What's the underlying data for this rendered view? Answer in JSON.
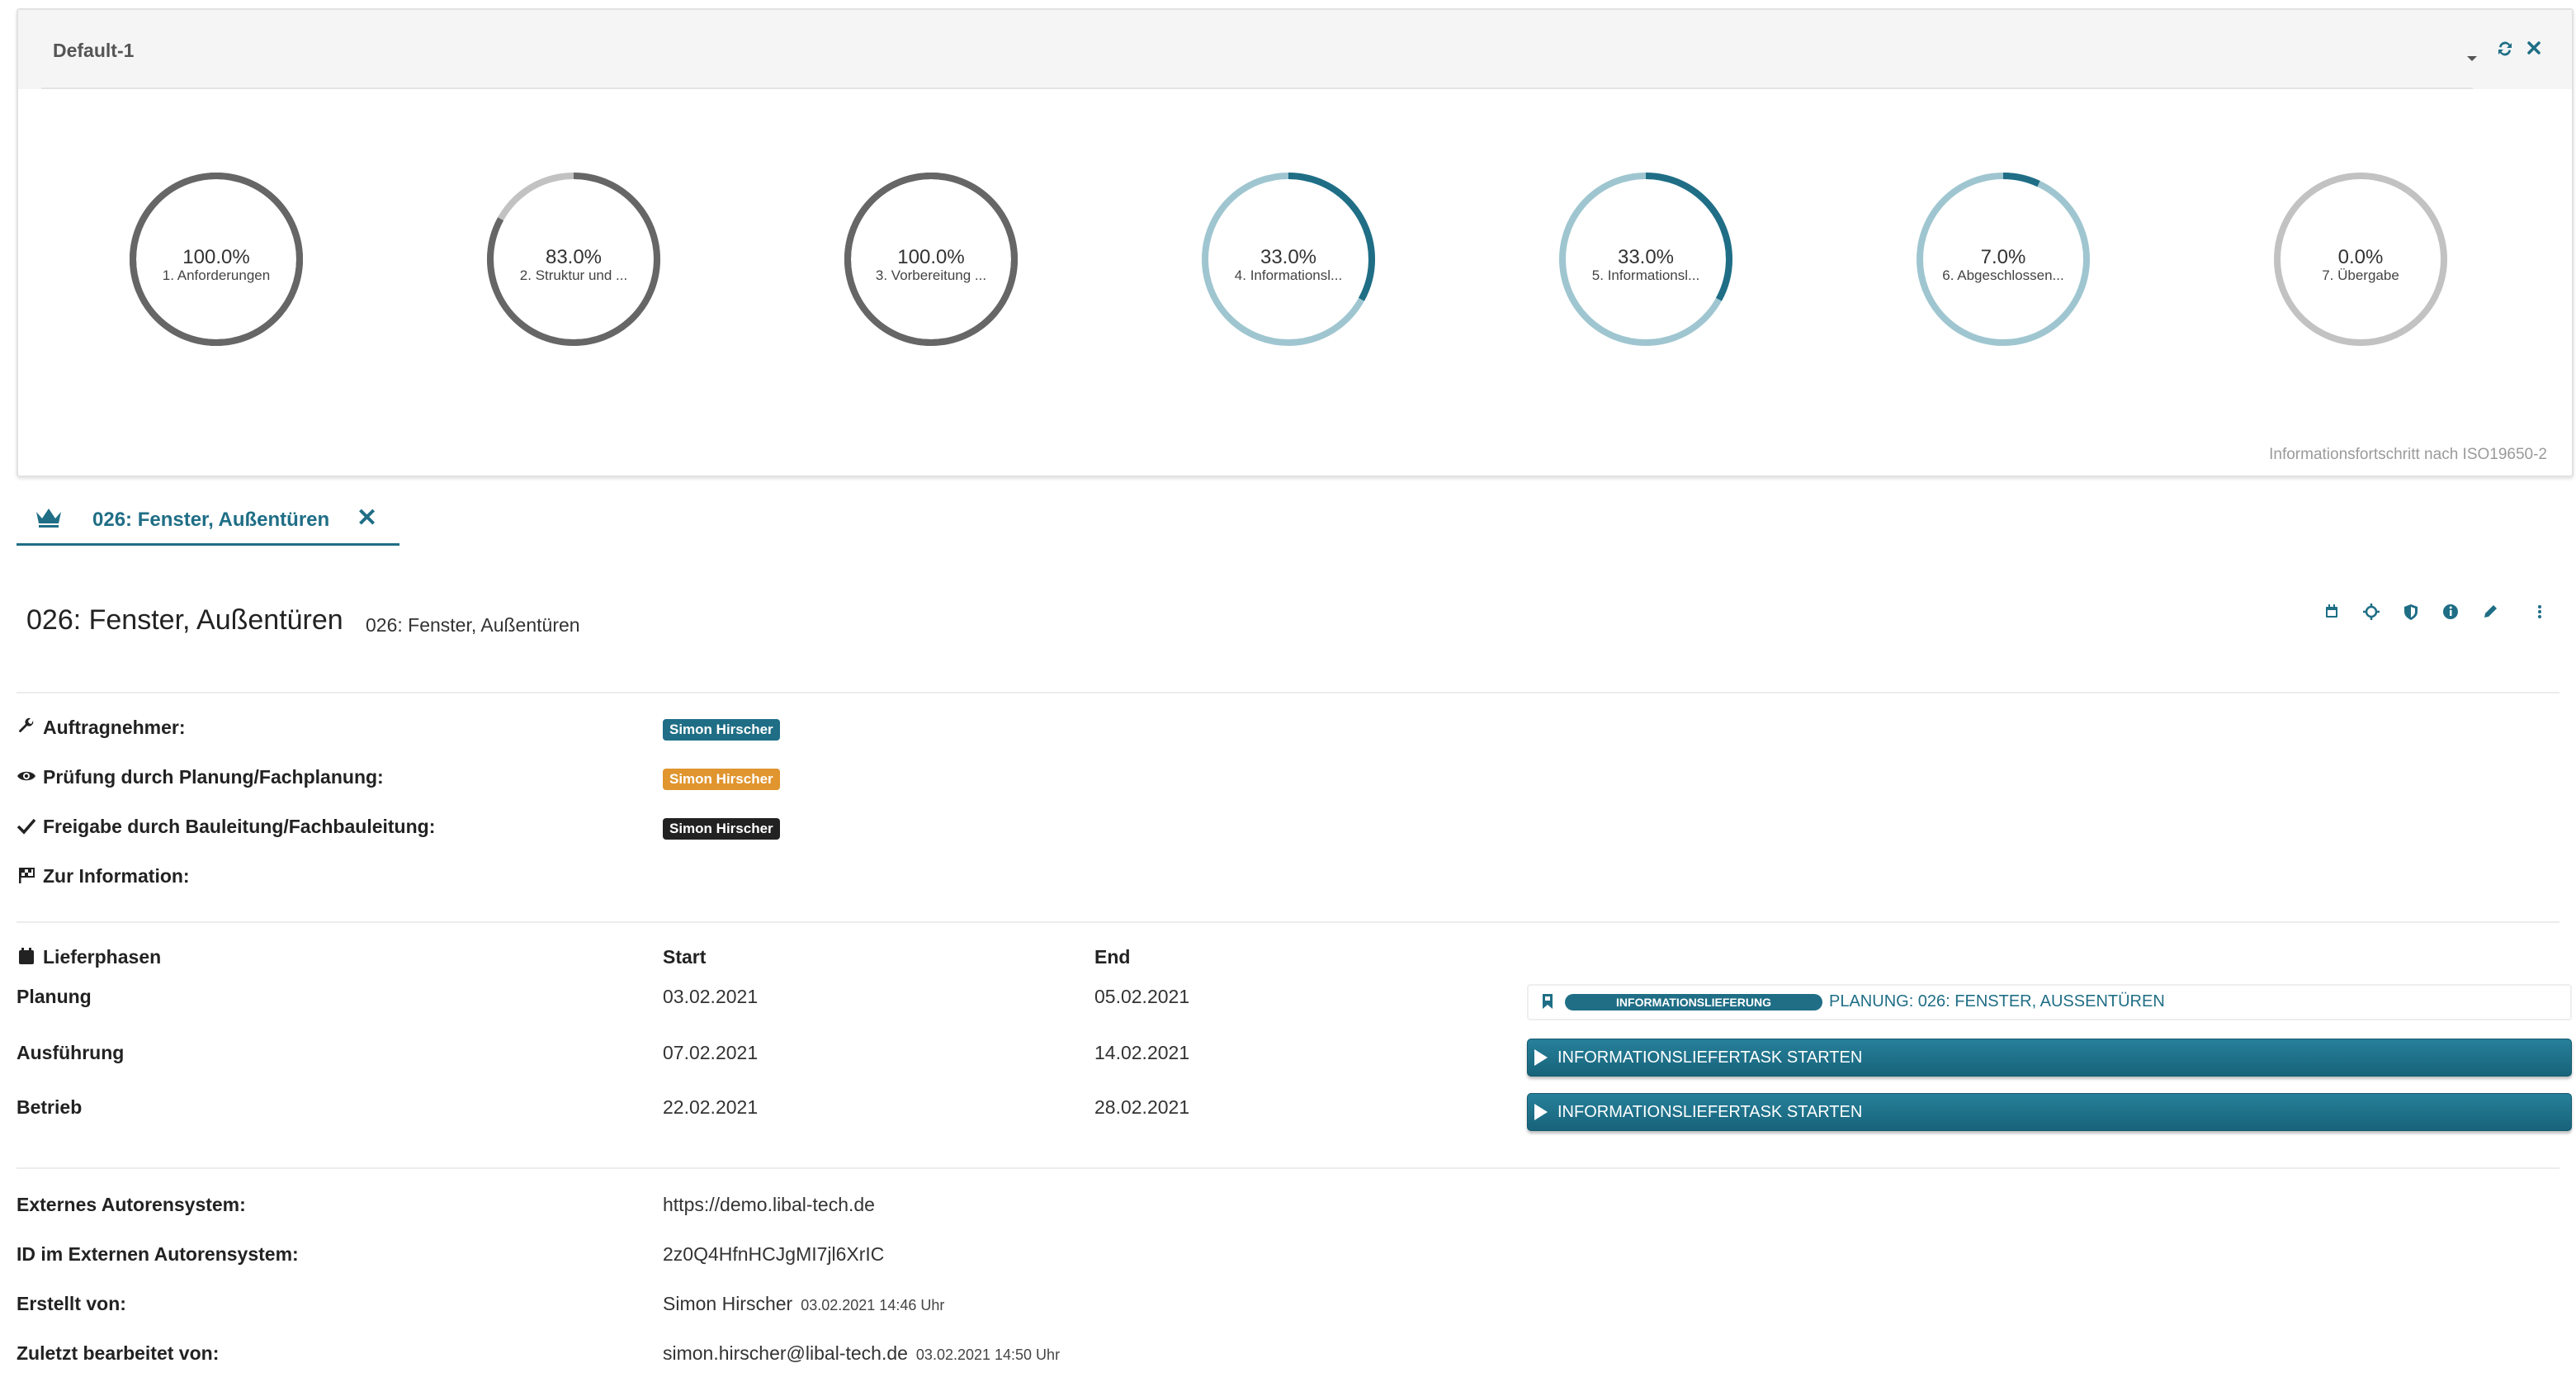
{
  "panel": {
    "title": "Default-1",
    "footer": "Informationsfortschritt nach ISO19650-2",
    "gauges": [
      {
        "pct": "100.0%",
        "label": "1. Anforderungen",
        "value": 100,
        "color": "#666666",
        "track": "#666666"
      },
      {
        "pct": "83.0%",
        "label": "2. Struktur und ...",
        "value": 83,
        "color": "#666666",
        "track": "#c2c2c2"
      },
      {
        "pct": "100.0%",
        "label": "3. Vorbereitung ...",
        "value": 100,
        "color": "#666666",
        "track": "#666666"
      },
      {
        "pct": "33.0%",
        "label": "4. Informationsl...",
        "value": 33,
        "color": "#1f6e86",
        "track": "#9fc6d0"
      },
      {
        "pct": "33.0%",
        "label": "5. Informationsl...",
        "value": 33,
        "color": "#1f6e86",
        "track": "#9fc6d0"
      },
      {
        "pct": "7.0%",
        "label": "6. Abgeschlossen...",
        "value": 7,
        "color": "#1f6e86",
        "track": "#9fc6d0"
      },
      {
        "pct": "0.0%",
        "label": "7. Übergabe",
        "value": 0,
        "color": "#c2c2c2",
        "track": "#c2c2c2"
      }
    ]
  },
  "tab": {
    "label": "026: Fenster, Außentüren"
  },
  "header": {
    "title": "026: Fenster, Außentüren",
    "subtitle": "026: Fenster, Außentüren"
  },
  "roles": {
    "contractor_label": "Auftragnehmer:",
    "contractor": "Simon Hirscher",
    "review_label": "Prüfung durch Planung/Fachplanung:",
    "reviewer": "Simon Hirscher",
    "approval_label": "Freigabe durch Bauleitung/Fachbauleitung:",
    "approver": "Simon Hirscher",
    "info_label": "Zur Information:"
  },
  "phases": {
    "col_phase": "Lieferphasen",
    "col_start": "Start",
    "col_end": "End",
    "rows": [
      {
        "name": "Planung",
        "start": "03.02.2021",
        "end": "05.02.2021"
      },
      {
        "name": "Ausführung",
        "start": "07.02.2021",
        "end": "14.02.2021"
      },
      {
        "name": "Betrieb",
        "start": "22.02.2021",
        "end": "28.02.2021"
      }
    ],
    "delivery_badge": "INFORMATIONSLIEFERUNG",
    "delivery_text": "PLANUNG: 026: FENSTER, AUSSENTÜREN",
    "start_button": "INFORMATIONSLIEFERTASK STARTEN"
  },
  "meta": {
    "ext_system_label": "Externes Autorensystem:",
    "ext_system": "https://demo.libal-tech.de",
    "ext_id_label": "ID im Externen Autorensystem:",
    "ext_id": "2z0Q4HfnHCJgMI7jl6XrIC",
    "created_label": "Erstellt von:",
    "created_by": "Simon Hirscher",
    "created_at": "03.02.2021 14:46 Uhr",
    "modified_label": "Zuletzt bearbeitet von:",
    "modified_by": "simon.hirscher@libal-tech.de",
    "modified_at": "03.02.2021 14:50 Uhr"
  },
  "colors": {
    "accent": "#1f6e86",
    "orange": "#e0952e",
    "dark": "#222222"
  }
}
